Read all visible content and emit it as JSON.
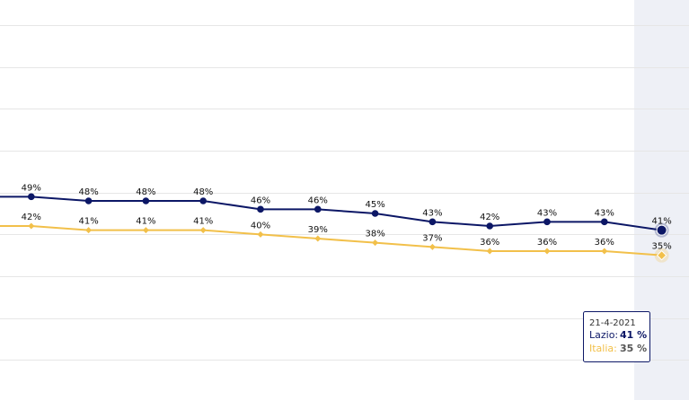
{
  "chart_data": {
    "type": "line",
    "categories": [
      null,
      null,
      null,
      null,
      null,
      null,
      null,
      null,
      null,
      null,
      null,
      null,
      null
    ],
    "series": [
      {
        "color": "#0c1766",
        "values": [
          49,
          49,
          48,
          48,
          48,
          46,
          46,
          45,
          43,
          42,
          43,
          43,
          41
        ],
        "value_labels": [
          null,
          "49%",
          "48%",
          "48%",
          "48%",
          "46%",
          "46%",
          "45%",
          "43%",
          "42%",
          "43%",
          "43%",
          "41%"
        ]
      },
      {
        "color": "#f2c04a",
        "values": [
          42,
          42,
          41,
          41,
          41,
          40,
          39,
          38,
          37,
          36,
          36,
          36,
          35
        ],
        "value_labels": [
          null,
          "42%",
          "41%",
          "41%",
          "41%",
          "40%",
          "39%",
          "38%",
          "37%",
          "36%",
          "36%",
          "36%",
          "35%"
        ]
      }
    ],
    "ylim": [
      0,
      96
    ],
    "yticks": [
      10,
      20,
      30,
      40,
      50,
      60,
      70,
      80,
      90
    ],
    "grid": true,
    "tooltip": {
      "date": "21-4-2021",
      "rows": [
        {
          "label": "Lazio:",
          "value": "41 %"
        },
        {
          "label": "Italia:",
          "value": "35 %"
        }
      ]
    }
  }
}
